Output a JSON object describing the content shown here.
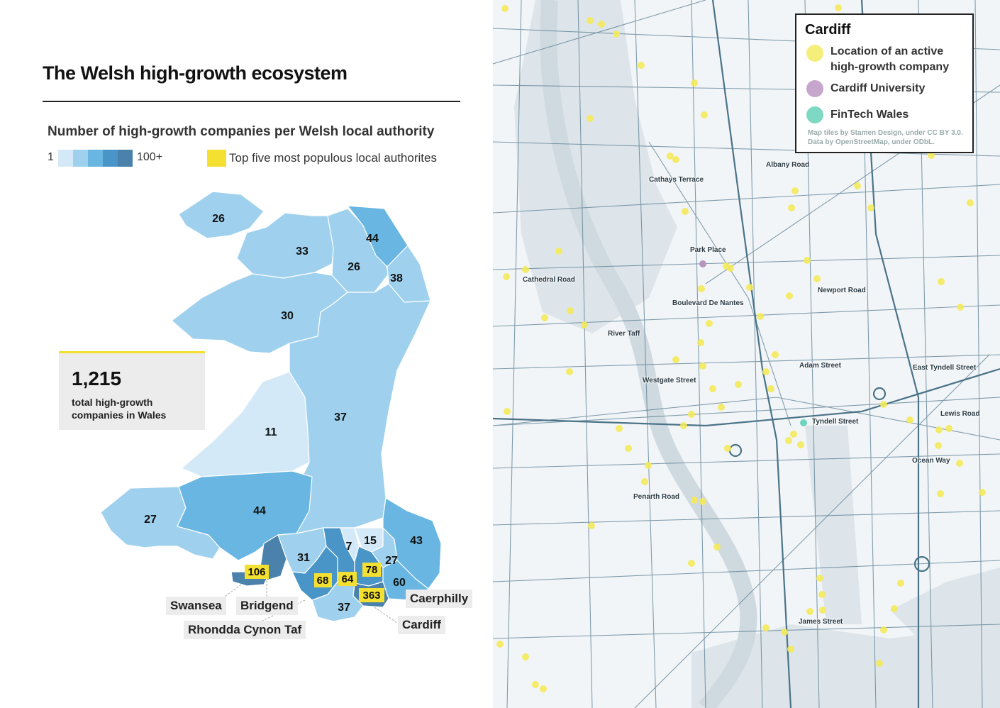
{
  "left": {
    "title": "The Welsh high-growth ecosystem",
    "subtitle": "Number of high-growth companies per Welsh local authority",
    "legend": {
      "min_label": "1",
      "max_label": "100+",
      "colors": [
        "#d4e9f7",
        "#9fd1ee",
        "#68b6e1",
        "#4a95c8",
        "#4a82ab"
      ],
      "highlight_label": "Top five most populous local authorites",
      "highlight_color": "#f4e030"
    },
    "stat": {
      "value": "1,215",
      "label": "total high-growth companies in Wales"
    },
    "region_values": {
      "anglesey": "26",
      "gwynedd_north": "33",
      "conwy": "26",
      "denbighshire_flint": "44",
      "wrexham": "38",
      "gwynedd_south": "30",
      "ceredigion": "11",
      "powys": "37",
      "pembrokeshire": "27",
      "carmarthenshire": "44",
      "swansea": "106",
      "neath_port_talbot": "31",
      "bridgend": "68",
      "rhondda": "64",
      "merthyr": "7",
      "blaenau": "15",
      "caerphilly": "78",
      "torfaen": "27",
      "monmouthshire": "43",
      "newport": "60",
      "cardiff": "363",
      "vale_of_glamorgan": "37"
    },
    "callouts": {
      "swansea": "Swansea",
      "bridgend": "Bridgend",
      "rhondda": "Rhondda Cynon Taf",
      "caerphilly": "Caerphilly",
      "cardiff": "Cardiff"
    }
  },
  "right": {
    "legend_title": "Cardiff",
    "legend_items": [
      {
        "label": "Location of an active high-growth company",
        "color": "#f4ee7a"
      },
      {
        "label": "Cardiff University",
        "color": "#c6a6cc"
      },
      {
        "label": "FinTech Wales",
        "color": "#7dd8c4"
      }
    ],
    "credit": "Map tiles by Stamen Design, under CC BY 3.0. Data by OpenStreetMap, under ODbL.",
    "street_labels": [
      "Albany Road",
      "Cathays Terrace",
      "Park Place",
      "Cathedral Road",
      "Newport Road",
      "Boulevard De Nantes",
      "River Taff",
      "Adam Street",
      "East Tyndell Street",
      "Westgate Street",
      "Tyndell Street",
      "Lewis Road",
      "Ocean Way",
      "Penarth Road",
      "James Street"
    ],
    "colors": {
      "road": "#5a7f93",
      "water": "#d3dde4",
      "land": "#f2f5f7",
      "company_dot": "#f4ea5a",
      "university_dot": "#b894c0",
      "fintech_dot": "#6fd4bd"
    }
  }
}
